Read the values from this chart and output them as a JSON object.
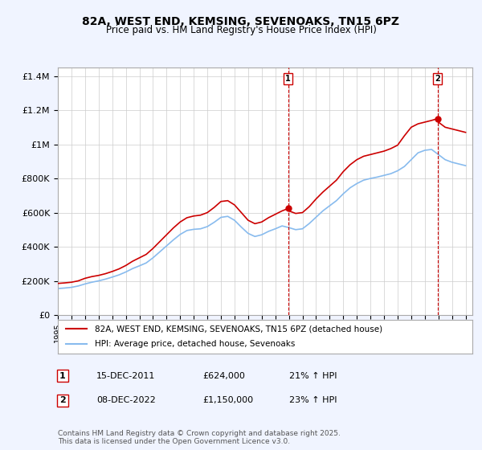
{
  "title": "82A, WEST END, KEMSING, SEVENOAKS, TN15 6PZ",
  "subtitle": "Price paid vs. HM Land Registry's House Price Index (HPI)",
  "xlabel": "",
  "ylabel": "",
  "ylim": [
    0,
    1450000
  ],
  "yticks": [
    0,
    200000,
    400000,
    600000,
    800000,
    1000000,
    1200000,
    1400000
  ],
  "ytick_labels": [
    "£0",
    "£200K",
    "£400K",
    "£600K",
    "£800K",
    "£1M",
    "£1.2M",
    "£1.4M"
  ],
  "xlim_start": 1995.0,
  "xlim_end": 2025.5,
  "background_color": "#f0f4ff",
  "plot_background": "#ffffff",
  "grid_color": "#cccccc",
  "red_line_color": "#cc0000",
  "blue_line_color": "#88bbee",
  "marker1_year": 2011.95,
  "marker1_value": 624000,
  "marker1_label": "1",
  "marker1_date": "15-DEC-2011",
  "marker1_price": "£624,000",
  "marker1_hpi": "21% ↑ HPI",
  "marker2_year": 2022.93,
  "marker2_value": 1150000,
  "marker2_label": "2",
  "marker2_date": "08-DEC-2022",
  "marker2_price": "£1,150,000",
  "marker2_hpi": "23% ↑ HPI",
  "legend_line1": "82A, WEST END, KEMSING, SEVENOAKS, TN15 6PZ (detached house)",
  "legend_line2": "HPI: Average price, detached house, Sevenoaks",
  "footer": "Contains HM Land Registry data © Crown copyright and database right 2025.\nThis data is licensed under the Open Government Licence v3.0.",
  "red_data_x": [
    1995.0,
    1995.5,
    1996.0,
    1996.5,
    1997.0,
    1997.5,
    1998.0,
    1998.5,
    1999.0,
    1999.5,
    2000.0,
    2000.5,
    2001.0,
    2001.5,
    2002.0,
    2002.5,
    2003.0,
    2003.5,
    2004.0,
    2004.5,
    2005.0,
    2005.5,
    2006.0,
    2006.5,
    2007.0,
    2007.5,
    2008.0,
    2008.5,
    2009.0,
    2009.5,
    2010.0,
    2010.5,
    2011.0,
    2011.5,
    2011.95,
    2012.0,
    2012.5,
    2013.0,
    2013.5,
    2014.0,
    2014.5,
    2015.0,
    2015.5,
    2016.0,
    2016.5,
    2017.0,
    2017.5,
    2018.0,
    2018.5,
    2019.0,
    2019.5,
    2020.0,
    2020.5,
    2021.0,
    2021.5,
    2022.0,
    2022.5,
    2022.93,
    2023.0,
    2023.5,
    2024.0,
    2024.5,
    2025.0
  ],
  "red_data_y": [
    185000,
    188000,
    192000,
    200000,
    215000,
    225000,
    232000,
    242000,
    255000,
    270000,
    290000,
    315000,
    335000,
    355000,
    390000,
    430000,
    470000,
    510000,
    545000,
    570000,
    580000,
    585000,
    600000,
    630000,
    665000,
    670000,
    645000,
    600000,
    555000,
    535000,
    545000,
    570000,
    590000,
    610000,
    624000,
    610000,
    595000,
    600000,
    635000,
    680000,
    720000,
    755000,
    790000,
    840000,
    880000,
    910000,
    930000,
    940000,
    950000,
    960000,
    975000,
    995000,
    1050000,
    1100000,
    1120000,
    1130000,
    1140000,
    1150000,
    1130000,
    1100000,
    1090000,
    1080000,
    1070000
  ],
  "blue_data_x": [
    1995.0,
    1995.5,
    1996.0,
    1996.5,
    1997.0,
    1997.5,
    1998.0,
    1998.5,
    1999.0,
    1999.5,
    2000.0,
    2000.5,
    2001.0,
    2001.5,
    2002.0,
    2002.5,
    2003.0,
    2003.5,
    2004.0,
    2004.5,
    2005.0,
    2005.5,
    2006.0,
    2006.5,
    2007.0,
    2007.5,
    2008.0,
    2008.5,
    2009.0,
    2009.5,
    2010.0,
    2010.5,
    2011.0,
    2011.5,
    2012.0,
    2012.5,
    2013.0,
    2013.5,
    2014.0,
    2014.5,
    2015.0,
    2015.5,
    2016.0,
    2016.5,
    2017.0,
    2017.5,
    2018.0,
    2018.5,
    2019.0,
    2019.5,
    2020.0,
    2020.5,
    2021.0,
    2021.5,
    2022.0,
    2022.5,
    2023.0,
    2023.5,
    2024.0,
    2024.5,
    2025.0
  ],
  "blue_data_y": [
    155000,
    158000,
    162000,
    170000,
    182000,
    192000,
    200000,
    210000,
    222000,
    235000,
    252000,
    272000,
    288000,
    305000,
    335000,
    370000,
    405000,
    440000,
    472000,
    495000,
    502000,
    505000,
    518000,
    543000,
    572000,
    578000,
    555000,
    515000,
    478000,
    460000,
    470000,
    490000,
    505000,
    522000,
    512000,
    500000,
    505000,
    536000,
    573000,
    610000,
    640000,
    670000,
    710000,
    745000,
    770000,
    790000,
    800000,
    808000,
    818000,
    828000,
    845000,
    870000,
    910000,
    950000,
    965000,
    970000,
    940000,
    910000,
    895000,
    885000,
    875000
  ]
}
